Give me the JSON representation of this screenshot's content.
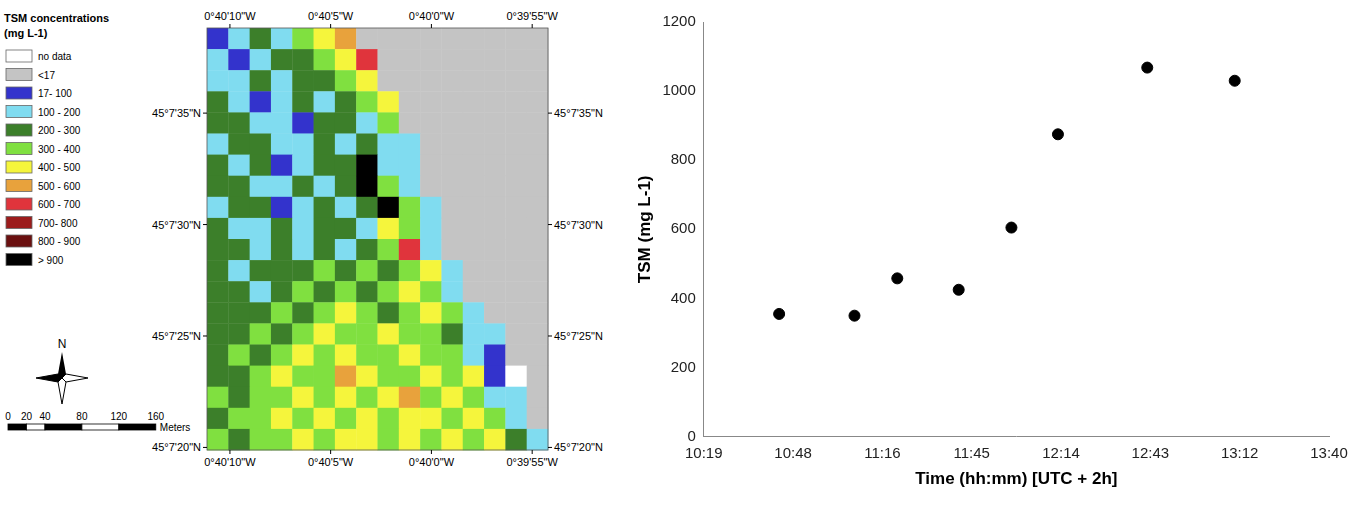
{
  "chart_data": [
    {
      "type": "map",
      "legend_title": [
        "TSM concentrations",
        "(mg L-1)"
      ],
      "categories": [
        "no data",
        "<17",
        "17- 100",
        "100 - 200",
        "200 - 300",
        "300 - 400",
        "400 - 500",
        "500 - 600",
        "600 - 700",
        "700- 800",
        "800 - 900",
        "> 900"
      ],
      "colors": [
        "#ffffff",
        "#c4c4c4",
        "#3333cc",
        "#80dcf0",
        "#3c7f2a",
        "#80e040",
        "#f5f53c",
        "#e8a23c",
        "#e0343c",
        "#9c1c1c",
        "#6a1010",
        "#000000"
      ],
      "cells": [
        [
          2,
          3,
          4,
          3,
          5,
          6,
          7,
          1,
          1,
          1,
          1,
          1,
          1,
          1,
          1,
          1
        ],
        [
          3,
          2,
          3,
          4,
          4,
          5,
          6,
          8,
          1,
          1,
          1,
          1,
          1,
          1,
          1,
          1
        ],
        [
          3,
          3,
          4,
          3,
          4,
          4,
          5,
          6,
          1,
          1,
          1,
          1,
          1,
          1,
          1,
          1
        ],
        [
          4,
          3,
          2,
          3,
          4,
          3,
          4,
          5,
          6,
          1,
          1,
          1,
          1,
          1,
          1,
          1
        ],
        [
          4,
          4,
          3,
          3,
          2,
          4,
          4,
          3,
          5,
          1,
          1,
          1,
          1,
          1,
          1,
          1
        ],
        [
          3,
          4,
          4,
          3,
          3,
          4,
          3,
          4,
          3,
          3,
          1,
          1,
          1,
          1,
          1,
          1
        ],
        [
          4,
          3,
          4,
          2,
          3,
          4,
          4,
          11,
          3,
          3,
          1,
          1,
          1,
          1,
          1,
          1
        ],
        [
          4,
          4,
          3,
          3,
          4,
          3,
          4,
          11,
          5,
          3,
          1,
          1,
          1,
          1,
          1,
          1
        ],
        [
          3,
          4,
          4,
          2,
          3,
          4,
          3,
          4,
          11,
          5,
          3,
          1,
          1,
          1,
          1,
          1
        ],
        [
          4,
          3,
          3,
          4,
          3,
          4,
          4,
          3,
          6,
          5,
          3,
          1,
          1,
          1,
          1,
          1
        ],
        [
          4,
          4,
          3,
          4,
          3,
          4,
          3,
          4,
          5,
          8,
          3,
          1,
          1,
          1,
          1,
          1
        ],
        [
          4,
          3,
          4,
          4,
          4,
          5,
          4,
          5,
          4,
          5,
          6,
          3,
          1,
          1,
          1,
          1
        ],
        [
          4,
          4,
          3,
          4,
          5,
          4,
          5,
          4,
          5,
          6,
          5,
          3,
          1,
          1,
          1,
          1
        ],
        [
          4,
          4,
          4,
          5,
          4,
          5,
          6,
          5,
          4,
          5,
          6,
          5,
          3,
          1,
          1,
          1
        ],
        [
          4,
          4,
          5,
          4,
          5,
          6,
          5,
          5,
          6,
          5,
          5,
          4,
          3,
          3,
          1,
          1
        ],
        [
          4,
          5,
          4,
          5,
          6,
          5,
          6,
          5,
          5,
          6,
          5,
          5,
          3,
          2,
          1,
          1
        ],
        [
          4,
          4,
          5,
          6,
          5,
          5,
          7,
          6,
          5,
          5,
          6,
          5,
          6,
          2,
          0,
          1
        ],
        [
          5,
          4,
          5,
          5,
          6,
          5,
          6,
          5,
          6,
          7,
          5,
          6,
          5,
          3,
          3,
          1
        ],
        [
          4,
          5,
          5,
          6,
          5,
          6,
          5,
          6,
          5,
          6,
          6,
          5,
          6,
          5,
          3,
          1
        ],
        [
          5,
          4,
          5,
          5,
          6,
          5,
          6,
          6,
          5,
          6,
          5,
          6,
          5,
          6,
          4,
          3
        ]
      ],
      "xlim": [
        -0.66976,
        -0.66506
      ],
      "ylim": [
        45.12219,
        45.12745
      ],
      "xticks": [
        {
          "value": -0.669444,
          "label": "0°40'10\"W"
        },
        {
          "value": -0.668056,
          "label": "0°40'5\"W"
        },
        {
          "value": -0.666667,
          "label": "0°40'0\"W"
        },
        {
          "value": -0.665278,
          "label": "0°39'55\"W"
        }
      ],
      "yticks": [
        {
          "value": 45.122222,
          "label": "45°7'20\"N"
        },
        {
          "value": 45.123611,
          "label": "45°7'25\"N"
        },
        {
          "value": 45.125,
          "label": "45°7'30\"N"
        },
        {
          "value": 45.126389,
          "label": "45°7'35\"N"
        }
      ],
      "scale_bar": {
        "ticks": [
          0,
          20,
          40,
          80,
          120,
          160
        ],
        "unit": "Meters"
      },
      "north": "N"
    },
    {
      "type": "scatter",
      "x_label": "Time (hh:mm) [UTC + 2h]",
      "y_label": "TSM (mg L-1)",
      "x": [
        643.5,
        667.8,
        681.6,
        701.4,
        718.4,
        733.4,
        762.2,
        790.4
      ],
      "values": [
        355,
        350,
        458,
        425,
        605,
        875,
        1068,
        1030
      ],
      "color": "#000000",
      "marker": "circle",
      "xlim": [
        619.2,
        820.8
      ],
      "xticks": [
        {
          "value": 619.2,
          "label": "10:19"
        },
        {
          "value": 648,
          "label": "10:48"
        },
        {
          "value": 676.8,
          "label": "11:16"
        },
        {
          "value": 705.6,
          "label": "11:45"
        },
        {
          "value": 734.4,
          "label": "12:14"
        },
        {
          "value": 763.2,
          "label": "12:43"
        },
        {
          "value": 792,
          "label": "13:12"
        },
        {
          "value": 820.8,
          "label": "13:40"
        }
      ],
      "ylim": [
        0,
        1200
      ],
      "yticks": [
        0,
        200,
        400,
        600,
        800,
        1000,
        1200
      ],
      "grid": false
    }
  ]
}
